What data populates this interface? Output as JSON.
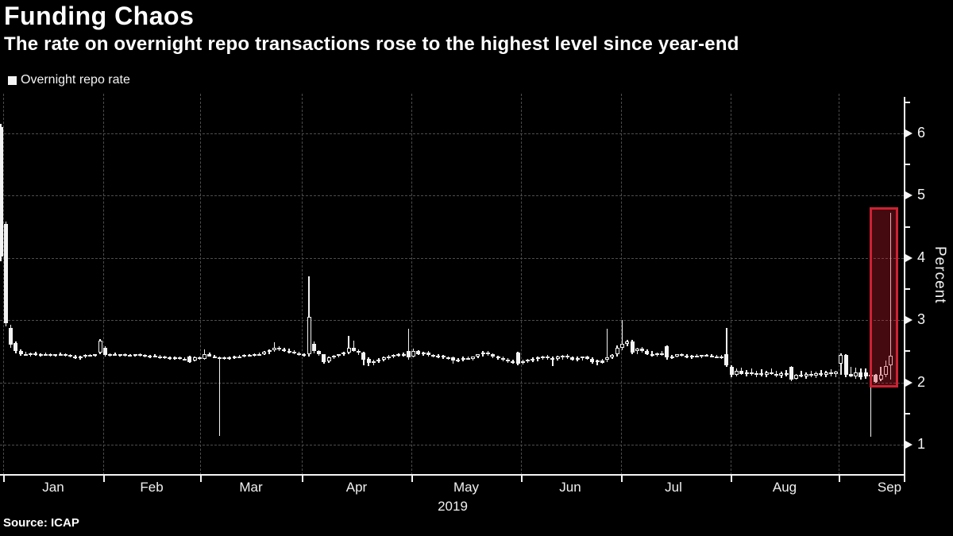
{
  "header": {
    "title": "Funding Chaos",
    "subtitle": "The rate on overnight repo transactions rose to the highest level since year-end"
  },
  "legend": {
    "label": "Overnight repo rate"
  },
  "footer": {
    "source": "Source: ICAP"
  },
  "y_axis": {
    "label": "Percent",
    "ticks": [
      6,
      5,
      4,
      3,
      2,
      1
    ]
  },
  "x_axis": {
    "months": [
      "Jan",
      "Feb",
      "Mar",
      "Apr",
      "May",
      "Jun",
      "Jul",
      "Aug",
      "Sep"
    ],
    "year": "2019"
  },
  "colors": {
    "background": "#000000",
    "text": "#ffffff",
    "candle": "#f2f2f2",
    "grid": "#4c4c4c",
    "highlight_border": "#cc2233",
    "highlight_fill": "rgba(205,30,45,0.33)"
  },
  "chart_data": {
    "type": "candlestick",
    "title": "Funding Chaos",
    "series_name": "Overnight repo rate",
    "frequency": "daily",
    "xlabel": "2019 (Jan - Sep)",
    "ylabel": "Percent",
    "ylim": [
      0.5,
      6.6
    ],
    "y_ticks": [
      1,
      2,
      3,
      4,
      5,
      6
    ],
    "grid": true,
    "legend_position": "top-left",
    "highlight_box": {
      "start_day": 175,
      "end_day": 179,
      "value_top": 4.82,
      "value_bottom": 1.92
    },
    "candles_format": [
      "open",
      "high",
      "low",
      "close"
    ],
    "candles": [
      [
        6.1,
        6.15,
        3.95,
        4.02
      ],
      [
        4.55,
        4.58,
        2.9,
        2.95
      ],
      [
        2.88,
        2.92,
        2.56,
        2.61
      ],
      [
        2.63,
        2.66,
        2.47,
        2.5
      ],
      [
        2.5,
        2.53,
        2.43,
        2.46
      ],
      [
        2.46,
        2.49,
        2.43,
        2.45
      ],
      [
        2.45,
        2.48,
        2.42,
        2.47
      ],
      [
        2.47,
        2.49,
        2.43,
        2.44
      ],
      [
        2.44,
        2.47,
        2.41,
        2.46
      ],
      [
        2.46,
        2.48,
        2.43,
        2.45
      ],
      [
        2.45,
        2.47,
        2.42,
        2.43
      ],
      [
        2.43,
        2.46,
        2.41,
        2.45
      ],
      [
        2.45,
        2.48,
        2.43,
        2.46
      ],
      [
        2.46,
        2.47,
        2.42,
        2.44
      ],
      [
        2.44,
        2.46,
        2.4,
        2.41
      ],
      [
        2.41,
        2.44,
        2.38,
        2.4
      ],
      [
        2.4,
        2.43,
        2.37,
        2.42
      ],
      [
        2.42,
        2.45,
        2.39,
        2.44
      ],
      [
        2.44,
        2.46,
        2.41,
        2.43
      ],
      [
        2.43,
        2.46,
        2.41,
        2.45
      ],
      [
        2.48,
        2.7,
        2.46,
        2.67
      ],
      [
        2.56,
        2.58,
        2.42,
        2.44
      ],
      [
        2.44,
        2.47,
        2.42,
        2.46
      ],
      [
        2.46,
        2.48,
        2.43,
        2.44
      ],
      [
        2.44,
        2.46,
        2.41,
        2.45
      ],
      [
        2.45,
        2.47,
        2.42,
        2.43
      ],
      [
        2.43,
        2.46,
        2.41,
        2.44
      ],
      [
        2.44,
        2.46,
        2.42,
        2.45
      ],
      [
        2.45,
        2.47,
        2.42,
        2.44
      ],
      [
        2.44,
        2.45,
        2.4,
        2.42
      ],
      [
        2.42,
        2.44,
        2.39,
        2.43
      ],
      [
        2.43,
        2.45,
        2.4,
        2.41
      ],
      [
        2.41,
        2.44,
        2.38,
        2.42
      ],
      [
        2.42,
        2.43,
        2.38,
        2.4
      ],
      [
        2.4,
        2.42,
        2.37,
        2.39
      ],
      [
        2.39,
        2.42,
        2.36,
        2.4
      ],
      [
        2.4,
        2.41,
        2.36,
        2.38
      ],
      [
        2.38,
        2.4,
        2.35,
        2.37
      ],
      [
        2.42,
        2.43,
        2.31,
        2.33
      ],
      [
        2.35,
        2.41,
        2.34,
        2.4
      ],
      [
        2.4,
        2.42,
        2.36,
        2.38
      ],
      [
        2.38,
        2.53,
        2.37,
        2.46
      ],
      [
        2.46,
        2.48,
        2.41,
        2.42
      ],
      [
        2.42,
        2.44,
        2.39,
        2.4
      ],
      [
        2.4,
        2.42,
        1.14,
        2.38
      ],
      [
        2.38,
        2.41,
        2.36,
        2.4
      ],
      [
        2.4,
        2.42,
        2.37,
        2.39
      ],
      [
        2.39,
        2.43,
        2.38,
        2.42
      ],
      [
        2.42,
        2.44,
        2.39,
        2.41
      ],
      [
        2.41,
        2.45,
        2.4,
        2.44
      ],
      [
        2.44,
        2.46,
        2.41,
        2.43
      ],
      [
        2.43,
        2.47,
        2.42,
        2.46
      ],
      [
        2.46,
        2.48,
        2.43,
        2.45
      ],
      [
        2.45,
        2.5,
        2.44,
        2.49
      ],
      [
        2.49,
        2.53,
        2.46,
        2.52
      ],
      [
        2.52,
        2.65,
        2.49,
        2.55
      ],
      [
        2.55,
        2.58,
        2.51,
        2.53
      ],
      [
        2.53,
        2.56,
        2.49,
        2.51
      ],
      [
        2.51,
        2.54,
        2.47,
        2.49
      ],
      [
        2.49,
        2.52,
        2.45,
        2.47
      ],
      [
        2.47,
        2.49,
        2.43,
        2.45
      ],
      [
        2.45,
        2.47,
        2.42,
        2.44
      ],
      [
        2.45,
        3.7,
        2.42,
        3.05
      ],
      [
        2.62,
        2.66,
        2.47,
        2.5
      ],
      [
        2.5,
        2.52,
        2.43,
        2.45
      ],
      [
        2.45,
        2.46,
        2.3,
        2.33
      ],
      [
        2.34,
        2.41,
        2.32,
        2.4
      ],
      [
        2.4,
        2.44,
        2.38,
        2.43
      ],
      [
        2.43,
        2.46,
        2.4,
        2.45
      ],
      [
        2.45,
        2.49,
        2.43,
        2.48
      ],
      [
        2.48,
        2.75,
        2.46,
        2.55
      ],
      [
        2.55,
        2.67,
        2.49,
        2.51
      ],
      [
        2.51,
        2.53,
        2.44,
        2.48
      ],
      [
        2.48,
        2.49,
        2.28,
        2.36
      ],
      [
        2.38,
        2.4,
        2.26,
        2.31
      ],
      [
        2.31,
        2.36,
        2.28,
        2.34
      ],
      [
        2.34,
        2.39,
        2.31,
        2.37
      ],
      [
        2.37,
        2.42,
        2.34,
        2.4
      ],
      [
        2.4,
        2.44,
        2.37,
        2.42
      ],
      [
        2.42,
        2.46,
        2.39,
        2.44
      ],
      [
        2.44,
        2.47,
        2.41,
        2.45
      ],
      [
        2.45,
        2.48,
        2.42,
        2.46
      ],
      [
        2.5,
        2.86,
        2.36,
        2.4
      ],
      [
        2.42,
        2.54,
        2.4,
        2.5
      ],
      [
        2.5,
        2.52,
        2.44,
        2.46
      ],
      [
        2.46,
        2.49,
        2.43,
        2.48
      ],
      [
        2.48,
        2.5,
        2.42,
        2.44
      ],
      [
        2.44,
        2.46,
        2.4,
        2.42
      ],
      [
        2.42,
        2.45,
        2.39,
        2.43
      ],
      [
        2.43,
        2.44,
        2.38,
        2.4
      ],
      [
        2.4,
        2.42,
        2.36,
        2.38
      ],
      [
        2.4,
        2.41,
        2.3,
        2.35
      ],
      [
        2.35,
        2.39,
        2.33,
        2.37
      ],
      [
        2.37,
        2.41,
        2.34,
        2.39
      ],
      [
        2.39,
        2.42,
        2.36,
        2.38
      ],
      [
        2.38,
        2.42,
        2.35,
        2.41
      ],
      [
        2.41,
        2.46,
        2.39,
        2.45
      ],
      [
        2.45,
        2.5,
        2.42,
        2.48
      ],
      [
        2.48,
        2.5,
        2.43,
        2.45
      ],
      [
        2.45,
        2.47,
        2.39,
        2.41
      ],
      [
        2.41,
        2.43,
        2.37,
        2.39
      ],
      [
        2.39,
        2.41,
        2.34,
        2.36
      ],
      [
        2.36,
        2.39,
        2.32,
        2.34
      ],
      [
        2.34,
        2.37,
        2.3,
        2.33
      ],
      [
        2.48,
        2.49,
        2.27,
        2.3
      ],
      [
        2.31,
        2.36,
        2.29,
        2.34
      ],
      [
        2.34,
        2.38,
        2.31,
        2.36
      ],
      [
        2.36,
        2.4,
        2.33,
        2.38
      ],
      [
        2.38,
        2.41,
        2.34,
        2.4
      ],
      [
        2.4,
        2.43,
        2.36,
        2.42
      ],
      [
        2.42,
        2.44,
        2.37,
        2.39
      ],
      [
        2.39,
        2.42,
        2.26,
        2.38
      ],
      [
        2.38,
        2.43,
        2.35,
        2.41
      ],
      [
        2.41,
        2.44,
        2.36,
        2.43
      ],
      [
        2.43,
        2.45,
        2.38,
        2.4
      ],
      [
        2.4,
        2.42,
        2.35,
        2.37
      ],
      [
        2.37,
        2.41,
        2.34,
        2.39
      ],
      [
        2.39,
        2.42,
        2.35,
        2.41
      ],
      [
        2.41,
        2.43,
        2.36,
        2.38
      ],
      [
        2.38,
        2.4,
        2.3,
        2.33
      ],
      [
        2.33,
        2.37,
        2.28,
        2.35
      ],
      [
        2.35,
        2.38,
        2.3,
        2.32
      ],
      [
        2.36,
        2.86,
        2.33,
        2.4
      ],
      [
        2.4,
        2.46,
        2.38,
        2.44
      ],
      [
        2.45,
        2.6,
        2.42,
        2.55
      ],
      [
        2.55,
        3.0,
        2.52,
        2.62
      ],
      [
        2.62,
        2.68,
        2.58,
        2.66
      ],
      [
        2.66,
        2.68,
        2.46,
        2.48
      ],
      [
        2.5,
        2.56,
        2.46,
        2.54
      ],
      [
        2.54,
        2.57,
        2.48,
        2.5
      ],
      [
        2.5,
        2.53,
        2.44,
        2.46
      ],
      [
        2.46,
        2.5,
        2.42,
        2.44
      ],
      [
        2.44,
        2.48,
        2.41,
        2.47
      ],
      [
        2.47,
        2.5,
        2.43,
        2.45
      ],
      [
        2.58,
        2.59,
        2.36,
        2.4
      ],
      [
        2.4,
        2.44,
        2.38,
        2.42
      ],
      [
        2.42,
        2.46,
        2.4,
        2.45
      ],
      [
        2.45,
        2.47,
        2.41,
        2.43
      ],
      [
        2.43,
        2.45,
        2.39,
        2.41
      ],
      [
        2.41,
        2.44,
        2.38,
        2.43
      ],
      [
        2.43,
        2.45,
        2.4,
        2.42
      ],
      [
        2.42,
        2.44,
        2.39,
        2.44
      ],
      [
        2.44,
        2.46,
        2.41,
        2.43
      ],
      [
        2.43,
        2.45,
        2.4,
        2.41
      ],
      [
        2.41,
        2.44,
        2.39,
        2.42
      ],
      [
        2.42,
        2.44,
        2.38,
        2.4
      ],
      [
        2.45,
        2.88,
        2.25,
        2.28
      ],
      [
        2.25,
        2.27,
        2.08,
        2.12
      ],
      [
        2.12,
        2.22,
        2.1,
        2.18
      ],
      [
        2.18,
        2.24,
        2.12,
        2.14
      ],
      [
        2.14,
        2.2,
        2.1,
        2.16
      ],
      [
        2.16,
        2.22,
        2.11,
        2.13
      ],
      [
        2.13,
        2.19,
        2.09,
        2.15
      ],
      [
        2.15,
        2.21,
        2.1,
        2.12
      ],
      [
        2.12,
        2.18,
        2.08,
        2.16
      ],
      [
        2.16,
        2.22,
        2.12,
        2.14
      ],
      [
        2.14,
        2.18,
        2.09,
        2.11
      ],
      [
        2.11,
        2.17,
        2.07,
        2.15
      ],
      [
        2.15,
        2.2,
        2.1,
        2.12
      ],
      [
        2.25,
        2.26,
        2.02,
        2.05
      ],
      [
        2.06,
        2.14,
        2.04,
        2.12
      ],
      [
        2.12,
        2.18,
        2.08,
        2.1
      ],
      [
        2.1,
        2.16,
        2.06,
        2.14
      ],
      [
        2.14,
        2.19,
        2.09,
        2.11
      ],
      [
        2.11,
        2.17,
        2.07,
        2.15
      ],
      [
        2.15,
        2.2,
        2.1,
        2.12
      ],
      [
        2.12,
        2.18,
        2.08,
        2.16
      ],
      [
        2.16,
        2.21,
        2.1,
        2.13
      ],
      [
        2.13,
        2.19,
        2.08,
        2.17
      ],
      [
        2.3,
        2.47,
        2.12,
        2.44
      ],
      [
        2.44,
        2.45,
        2.08,
        2.12
      ],
      [
        2.14,
        2.25,
        2.08,
        2.1
      ],
      [
        2.1,
        2.24,
        2.06,
        2.16
      ],
      [
        2.16,
        2.22,
        2.04,
        2.08
      ],
      [
        2.16,
        2.22,
        2.06,
        2.1
      ],
      [
        2.1,
        2.16,
        1.13,
        2.12
      ],
      [
        2.12,
        2.14,
        1.99,
        2.01
      ],
      [
        2.05,
        2.25,
        2.02,
        2.12
      ],
      [
        2.12,
        2.35,
        2.08,
        2.26
      ],
      [
        2.28,
        4.72,
        2.05,
        2.43
      ]
    ]
  }
}
